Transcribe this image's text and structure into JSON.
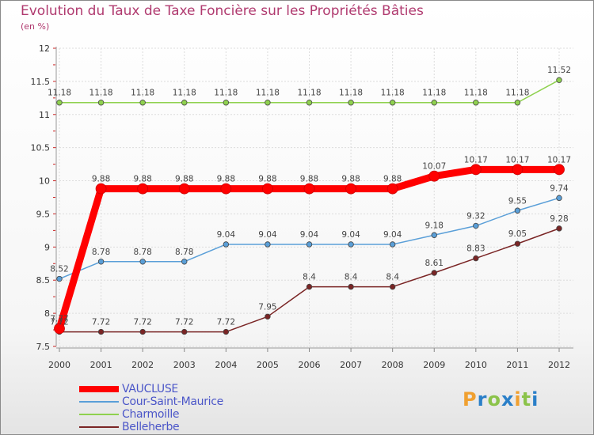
{
  "header": {
    "title": "Evolution du Taux de Taxe Foncière sur les Propriétés Bâties",
    "subtitle": "(en %)"
  },
  "chart_data": {
    "type": "line",
    "x": [
      "2000",
      "2001",
      "2002",
      "2003",
      "2004",
      "2005",
      "2006",
      "2007",
      "2008",
      "2009",
      "2010",
      "2011",
      "2012"
    ],
    "ylim": [
      7.5,
      12
    ],
    "yticks": [
      "7.5",
      "8",
      "8.5",
      "9",
      "9.5",
      "10",
      "10.5",
      "11",
      "11.5",
      "12"
    ],
    "grid": true,
    "legend_position": "bottom-left",
    "series": [
      {
        "name": "Charmoille",
        "color": "#8fd14f",
        "values": [
          11.18,
          11.18,
          11.18,
          11.18,
          11.18,
          11.18,
          11.18,
          11.18,
          11.18,
          11.18,
          11.18,
          11.18,
          11.52
        ],
        "labels": [
          "11.18",
          "11.18",
          "11.18",
          "11.18",
          "11.18",
          "11.18",
          "11.18",
          "11.18",
          "11.18",
          "11.18",
          "11.18",
          "11.18",
          "11.52"
        ]
      },
      {
        "name": "Cour-Saint-Maurice",
        "color": "#5a9fd8",
        "values": [
          8.52,
          8.78,
          8.78,
          8.78,
          9.04,
          9.04,
          9.04,
          9.04,
          9.04,
          9.18,
          9.32,
          9.55,
          9.74
        ],
        "labels": [
          "8.52",
          "8.78",
          "8.78",
          "8.78",
          "9.04",
          "9.04",
          "9.04",
          "9.04",
          "9.04",
          "9.18",
          "9.32",
          "9.55",
          "9.74"
        ]
      },
      {
        "name": "Belleherbe",
        "color": "#7a2525",
        "values": [
          7.72,
          7.72,
          7.72,
          7.72,
          7.72,
          7.95,
          8.4,
          8.4,
          8.4,
          8.61,
          8.83,
          9.05,
          9.28
        ],
        "labels": [
          "7.72",
          "7.72",
          "7.72",
          "7.72",
          "7.72",
          "7.95",
          "8.4",
          "8.4",
          "8.4",
          "8.61",
          "8.83",
          "9.05",
          "9.28"
        ]
      },
      {
        "name": "VAUCLUSE",
        "color": "#ff0000",
        "values": [
          7.77,
          9.88,
          9.88,
          9.88,
          9.88,
          9.88,
          9.88,
          9.88,
          9.88,
          10.07,
          10.17,
          10.17,
          10.17
        ],
        "labels": [
          "7.77",
          "9.88",
          "9.88",
          "9.88",
          "9.88",
          "9.88",
          "9.88",
          "9.88",
          "9.88",
          "10.07",
          "10.17",
          "10.17",
          "10.17"
        ]
      }
    ]
  },
  "legend": {
    "items": [
      {
        "label": "VAUCLUSE",
        "color": "#ff0000"
      },
      {
        "label": "Cour-Saint-Maurice",
        "color": "#5a9fd8"
      },
      {
        "label": "Charmoille",
        "color": "#8fd14f"
      },
      {
        "label": "Belleherbe",
        "color": "#7a2525"
      }
    ]
  },
  "logo": {
    "letters": [
      "P",
      "r",
      "o",
      "x",
      "i",
      "t",
      "i"
    ],
    "colors": [
      "#f0a030",
      "#2a7fc8",
      "#8bc34a",
      "#2a7fc8",
      "#f0a030",
      "#8bc34a",
      "#2a7fc8"
    ]
  }
}
